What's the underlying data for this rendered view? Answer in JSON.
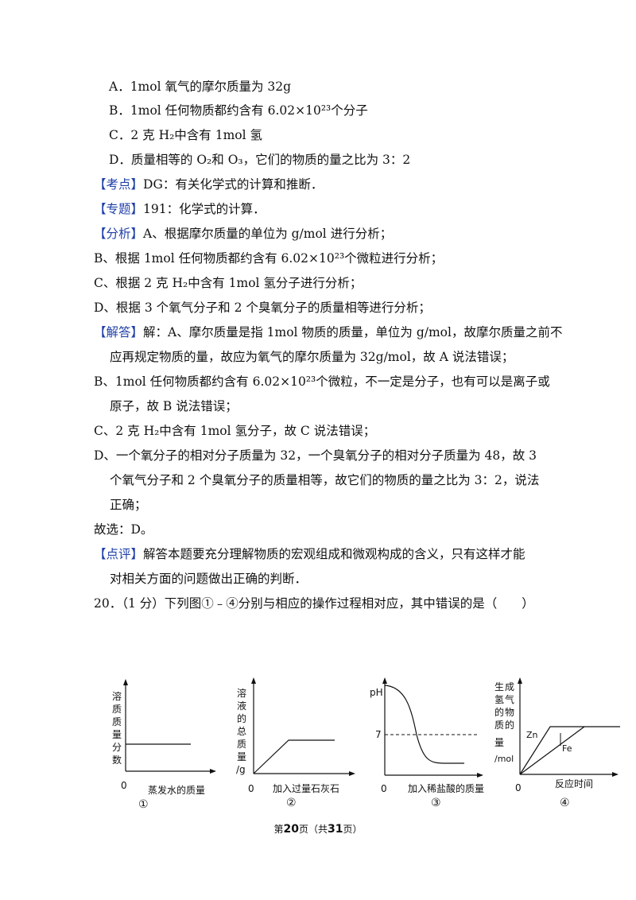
{
  "lines": [
    {
      "text": "A．1mol 氧气的摩尔质量为 32g"
    },
    {
      "text": "B．1mol 任何物质都约含有 6.02×10²³个分子"
    },
    {
      "text": "C．2 克 H₂中含有 1mol 氢"
    },
    {
      "text": "D．质量相等的 O₂和 O₃，它们的物质的量之比为 3：2"
    },
    {
      "tag": "【考点】",
      "text": "DG：有关化学式的计算和推断．"
    },
    {
      "tag": "【专题】",
      "text": "191：化学式的计算．"
    },
    {
      "tag": "【分析】",
      "text": "A、根据摩尔质量的单位为 g/mol 进行分析；"
    },
    {
      "text": "B、根据 1mol 任何物质都约含有 6.02×10²³个微粒进行分析；"
    },
    {
      "text": "C、根据 2 克 H₂中含有 1mol 氢分子进行分析；"
    },
    {
      "text": "D、根据 3 个氧气分子和 2 个臭氧分子的质量相等进行分析；"
    },
    {
      "tag": "【解答】",
      "text": "解：A、摩尔质量是指 1mol 物质的质量，单位为 g/mol，故摩尔质量之前不"
    },
    {
      "text": "应再规定物质的量，故应为氧气的摩尔质量为 32g/mol，故 A 说法错误；"
    },
    {
      "text": "B、1mol 任何物质都约含有 6.02×10²³个微粒，不一定是分子，也有可以是离子或"
    },
    {
      "text": "原子，故 B 说法错误；"
    },
    {
      "text": "C、2 克 H₂中含有 1mol 氢分子，故 C 说法错误；"
    },
    {
      "text": "D、一个氧分子的相对分子质量为 32，一个臭氧分子的相对分子质量为 48，故 3"
    },
    {
      "text": "个氧气分子和 2 个臭氧分子的质量相等，故它们的物质的量之比为 3：2，说法"
    },
    {
      "text": "正确；"
    },
    {
      "text": "故选：D。"
    },
    {
      "tag": "【点评】",
      "text": "解答本题要充分理解物质的宏观组成和微观构成的含义，只有这样才能"
    },
    {
      "text": "对相关方面的问题做出正确的判断．"
    },
    {
      "text": "20．（1 分）下列图①﹣④分别与相应的操作过程相对应，其中错误的是（　　）"
    }
  ],
  "figures": {
    "fig1": {
      "ylabel": "溶质质量分数",
      "origin": "0",
      "xlabel": "蒸发水的质量",
      "number": "①"
    },
    "fig2": {
      "ylabel": "溶液的总质量",
      "yunit": "/g",
      "origin": "0",
      "xlabel": "加入过量石灰石",
      "number": "②"
    },
    "fig3": {
      "ylabel": "pH",
      "ref": "7",
      "origin": "0",
      "xlabel": "加入稀盐酸的质量",
      "number": "③"
    },
    "fig4": {
      "ylabel": "生成氢气的物质的量",
      "yunit": "/mol",
      "series1": "Zn",
      "series2": "Fe",
      "origin": "0",
      "xlabel": "反应时间",
      "number": "④"
    }
  },
  "footer": {
    "prefix": "第",
    "page": "20",
    "mid": "页（共",
    "total": "31",
    "suffix": "页）"
  }
}
